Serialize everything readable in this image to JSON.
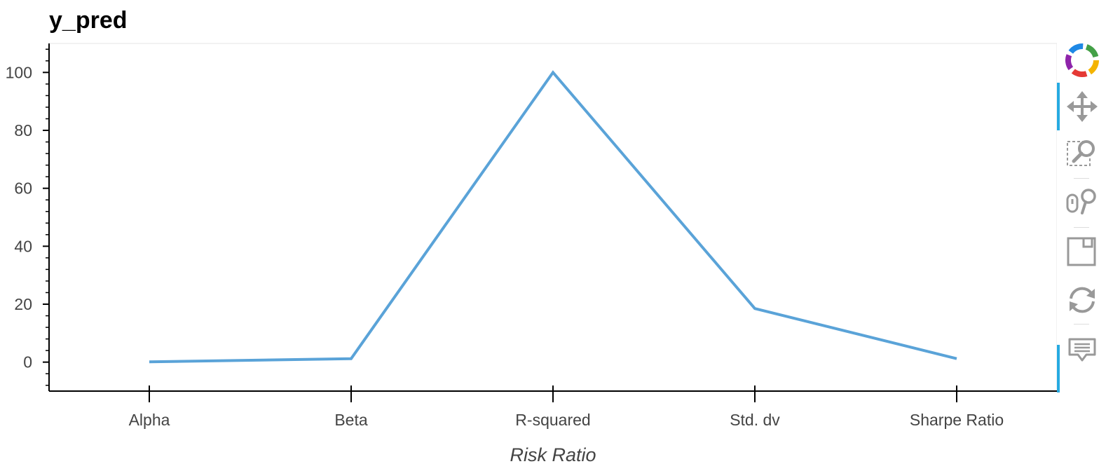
{
  "title": "y_pred",
  "chart_data": {
    "type": "line",
    "title": "y_pred",
    "xlabel": "Risk Ratio",
    "ylabel": "",
    "categories": [
      "Alpha",
      "Beta",
      "R-squared",
      "Std. dv",
      "Sharpe Ratio"
    ],
    "series": [
      {
        "values": [
          0.1,
          1.2,
          100.0,
          18.5,
          1.2
        ],
        "color": "#5aa3d8"
      }
    ],
    "yticks": [
      0,
      20,
      40,
      60,
      80,
      100
    ],
    "ylim": [
      -10,
      110
    ],
    "grid": false,
    "legend": "none"
  },
  "toolbar": {
    "tools": [
      {
        "name": "bokeh-logo-icon",
        "label": "Bokeh"
      },
      {
        "name": "pan-icon",
        "label": "Pan",
        "active": true
      },
      {
        "name": "box-zoom-icon",
        "label": "Box Zoom"
      },
      {
        "name": "wheel-zoom-icon",
        "label": "Wheel Zoom"
      },
      {
        "name": "save-icon",
        "label": "Save"
      },
      {
        "name": "reset-icon",
        "label": "Reset"
      },
      {
        "name": "hover-icon",
        "label": "Hover",
        "active": true
      }
    ]
  }
}
